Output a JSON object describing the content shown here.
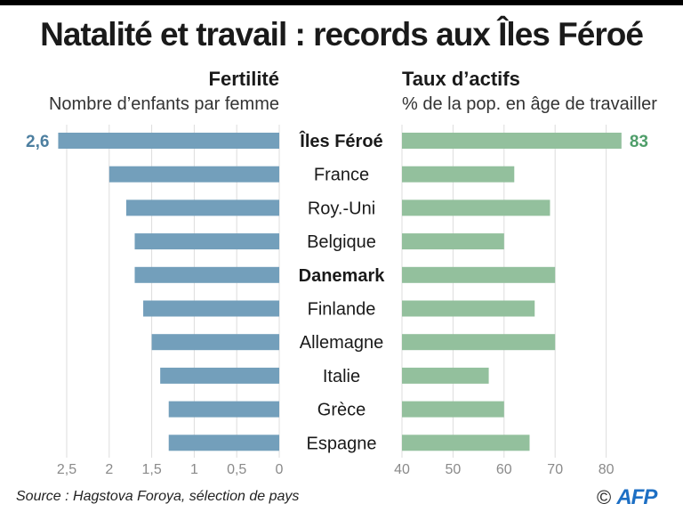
{
  "title": "Natalité et travail : records aux Îles Féroé",
  "colors": {
    "fertility": "#739fbb",
    "fertility_label": "#4d7fa0",
    "activity": "#93c09d",
    "activity_label": "#4f9e6a",
    "grid": "#dddddd",
    "tick": "#8a8a8a"
  },
  "chart_data": [
    {
      "type": "bar",
      "orientation": "horizontal",
      "title": "Fertilité",
      "subtitle": "Nombre d’enfants par femme",
      "categories": [
        "Îles Féroé",
        "France",
        "Roy.-Uni",
        "Belgique",
        "Danemark",
        "Finlande",
        "Allemagne",
        "Italie",
        "Grèce",
        "Espagne"
      ],
      "values": [
        2.6,
        2.0,
        1.8,
        1.7,
        1.7,
        1.6,
        1.5,
        1.4,
        1.3,
        1.3
      ],
      "xlim": [
        0,
        2.6
      ],
      "direction": "right-to-left",
      "ticks": [
        0,
        0.5,
        1,
        1.5,
        2,
        2.5
      ],
      "tick_labels": [
        "0",
        "0,5",
        "1",
        "1,5",
        "2",
        "2,5"
      ],
      "data_labels": [
        {
          "category": "Îles Féroé",
          "text": "2,6"
        }
      ],
      "grid": true
    },
    {
      "type": "bar",
      "orientation": "horizontal",
      "title": "Taux d’actifs",
      "subtitle": "% de la pop. en âge de travailler",
      "categories": [
        "Îles Féroé",
        "France",
        "Roy.-Uni",
        "Belgique",
        "Danemark",
        "Finlande",
        "Allemagne",
        "Italie",
        "Grèce",
        "Espagne"
      ],
      "values": [
        83,
        62,
        69,
        60,
        70,
        66,
        70,
        57,
        60,
        65
      ],
      "xlim": [
        40,
        85
      ],
      "ticks": [
        40,
        50,
        60,
        70,
        80
      ],
      "tick_labels": [
        "40",
        "50",
        "60",
        "70",
        "80"
      ],
      "data_labels": [
        {
          "category": "Îles Féroé",
          "text": "83"
        }
      ],
      "grid": true
    }
  ],
  "bold_categories": [
    "Îles Féroé",
    "Danemark"
  ],
  "footer": {
    "source": "Source : Hagstova Foroya, sélection de pays",
    "copyright": "©",
    "logo": "AFP"
  }
}
